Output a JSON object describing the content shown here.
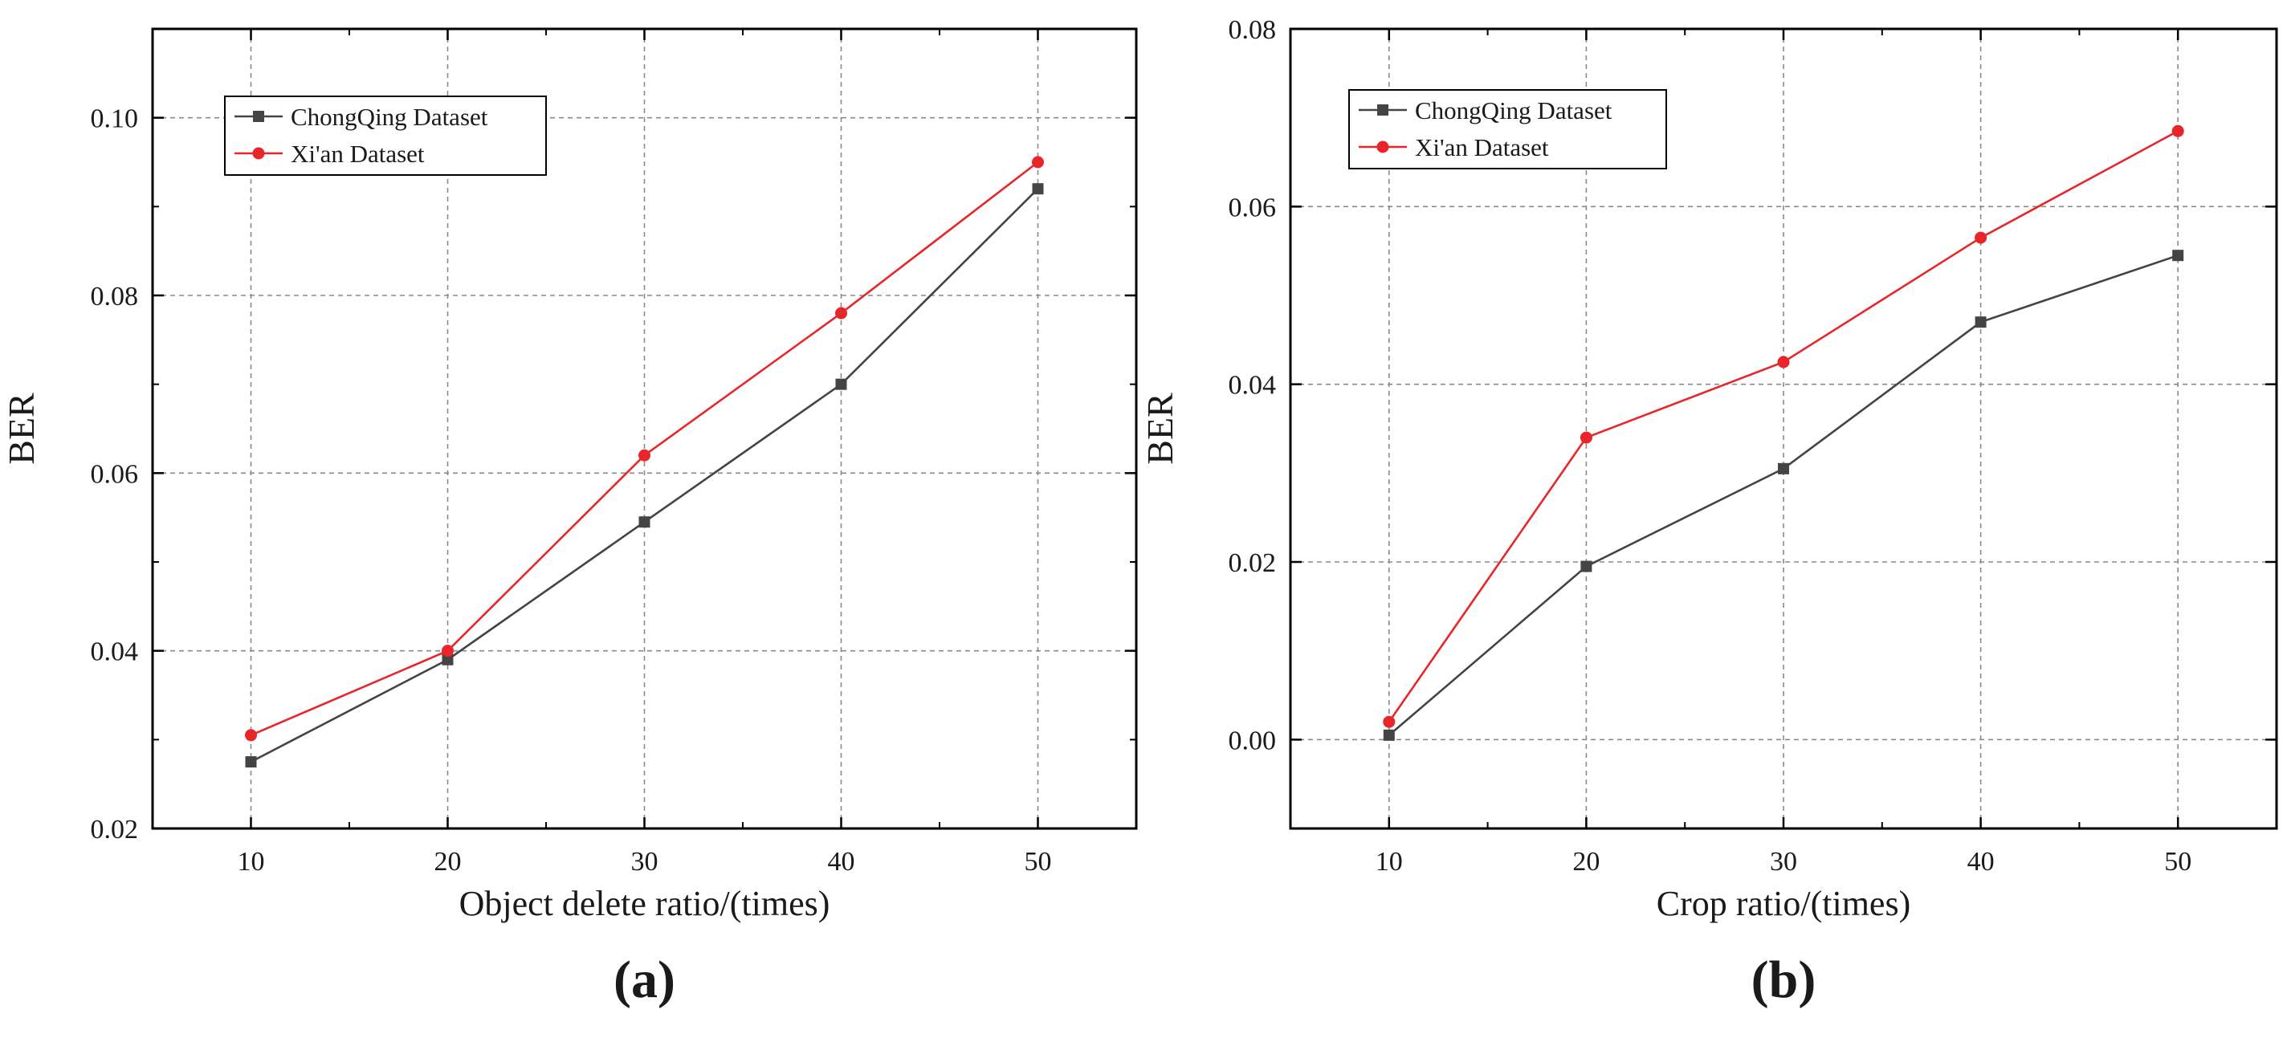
{
  "chart_data": [
    {
      "type": "line",
      "panel_label": "(a)",
      "title": "",
      "xlabel": "Object delete ratio/(times)",
      "ylabel": "BER",
      "x": [
        10,
        20,
        30,
        40,
        50
      ],
      "xlim": [
        5,
        55
      ],
      "ylim": [
        0.02,
        0.11
      ],
      "xticks": [
        10,
        20,
        30,
        40,
        50
      ],
      "xtick_labels": [
        "10",
        "20",
        "30",
        "40",
        "50"
      ],
      "yticks": [
        0.02,
        0.04,
        0.06,
        0.08,
        0.1
      ],
      "ytick_labels": [
        "0.02",
        "0.04",
        "0.06",
        "0.08",
        "0.10"
      ],
      "grid": true,
      "legend_position": "top-left",
      "series": [
        {
          "name": "ChongQing Dataset",
          "color": "#444444",
          "marker": "square",
          "values": [
            0.0275,
            0.039,
            0.0545,
            0.07,
            0.092
          ]
        },
        {
          "name": "Xi'an Dataset",
          "color": "#e8262a",
          "marker": "circle",
          "values": [
            0.0305,
            0.04,
            0.062,
            0.078,
            0.095
          ]
        }
      ]
    },
    {
      "type": "line",
      "panel_label": "(b)",
      "title": "",
      "xlabel": "Crop ratio/(times)",
      "ylabel": "BER",
      "x": [
        10,
        20,
        30,
        40,
        50
      ],
      "xlim": [
        5,
        55
      ],
      "ylim": [
        -0.01,
        0.08
      ],
      "xticks": [
        10,
        20,
        30,
        40,
        50
      ],
      "xtick_labels": [
        "10",
        "20",
        "30",
        "40",
        "50"
      ],
      "yticks": [
        0.0,
        0.02,
        0.04,
        0.06,
        0.08
      ],
      "ytick_labels": [
        "0.00",
        "0.02",
        "0.04",
        "0.06",
        "0.08"
      ],
      "grid": true,
      "legend_position": "top-left",
      "series": [
        {
          "name": "ChongQing Dataset",
          "color": "#444444",
          "marker": "square",
          "values": [
            0.0005,
            0.0195,
            0.0305,
            0.047,
            0.0545
          ]
        },
        {
          "name": "Xi'an Dataset",
          "color": "#e8262a",
          "marker": "circle",
          "values": [
            0.002,
            0.034,
            0.0425,
            0.0565,
            0.0685
          ]
        }
      ]
    }
  ]
}
